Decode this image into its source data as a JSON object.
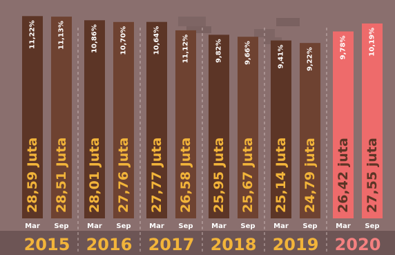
{
  "colors": {
    "background": "#8a6f6e",
    "bar_dark": "#5c3526",
    "bar_light": "#6e4231",
    "bar_highlight": "#ee6b6b",
    "text_gold": "#f2b43a",
    "text_highlight": "#f48080",
    "divider": "#d8c8c6",
    "month_label": "#ffffff",
    "bottom_band": "#6d5555"
  },
  "chart_data": {
    "type": "bar",
    "title": "",
    "xlabel": "",
    "ylabel": "",
    "value_unit": "juta",
    "ylim": [
      0,
      29.5
    ],
    "years": [
      {
        "year": "2015",
        "highlight": false,
        "bars": [
          {
            "month": "Mar",
            "value": 28.59,
            "label": "28,59 Juta",
            "percent": "11,22%"
          },
          {
            "month": "Sep",
            "value": 28.51,
            "label": "28,51 Juta",
            "percent": "11,13%"
          }
        ]
      },
      {
        "year": "2016",
        "highlight": false,
        "bars": [
          {
            "month": "Mar",
            "value": 28.01,
            "label": "28,01 Juta",
            "percent": "10,86%"
          },
          {
            "month": "Sep",
            "value": 27.76,
            "label": "27,76 Juta",
            "percent": "10,70%"
          }
        ]
      },
      {
        "year": "2017",
        "highlight": false,
        "bars": [
          {
            "month": "Mar",
            "value": 27.77,
            "label": "27,77 Juta",
            "percent": "10,64%"
          },
          {
            "month": "Sep",
            "value": 26.58,
            "label": "26,58 Juta",
            "percent": "11,12%"
          }
        ]
      },
      {
        "year": "2018",
        "highlight": false,
        "bars": [
          {
            "month": "Mar",
            "value": 25.95,
            "label": "25,95 Juta",
            "percent": "9,82%"
          },
          {
            "month": "Sep",
            "value": 25.67,
            "label": "25,67 Juta",
            "percent": "9,66%"
          }
        ]
      },
      {
        "year": "2019",
        "highlight": false,
        "bars": [
          {
            "month": "Mar",
            "value": 25.14,
            "label": "25,14 Juta",
            "percent": "9,41%"
          },
          {
            "month": "Sep",
            "value": 24.79,
            "label": "24,79 juta",
            "percent": "9,22%"
          }
        ]
      },
      {
        "year": "2020",
        "highlight": true,
        "bars": [
          {
            "month": "Mar",
            "value": 26.42,
            "label": "26,42 juta",
            "percent": "9,78%"
          },
          {
            "month": "Sep",
            "value": 27.55,
            "label": "27,55 juta",
            "percent": "10,19%"
          }
        ]
      }
    ]
  }
}
